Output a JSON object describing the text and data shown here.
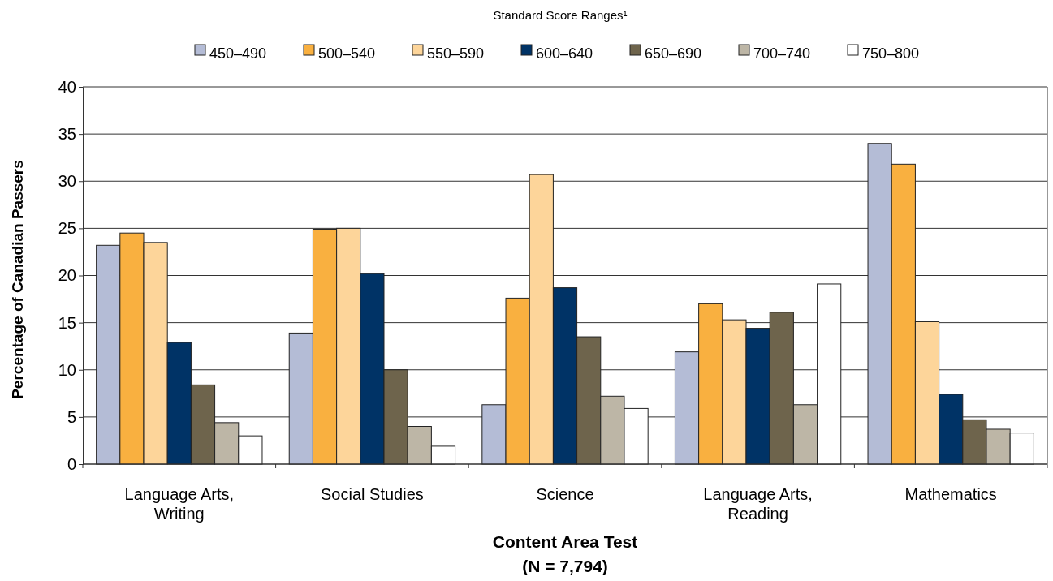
{
  "chart_data": {
    "type": "bar",
    "legend_title": "Standard Score Ranges¹",
    "xlabel": "Content Area Test\n(N = 7,794)",
    "ylabel": "Percentage of Canadian Passers",
    "categories": [
      "Language Arts, Writing",
      "Social Studies",
      "Science",
      "Language Arts, Reading",
      "Mathematics"
    ],
    "series": [
      {
        "name": "450–490",
        "color": "#b4bcd6",
        "values": [
          23.2,
          13.9,
          6.3,
          11.9,
          34.0
        ]
      },
      {
        "name": "500–540",
        "color": "#f9b040",
        "values": [
          24.5,
          24.9,
          17.6,
          17.0,
          31.8
        ]
      },
      {
        "name": "550–590",
        "color": "#fdd59a",
        "values": [
          23.5,
          25.0,
          30.7,
          15.3,
          15.1
        ]
      },
      {
        "name": "600–640",
        "color": "#003366",
        "values": [
          12.9,
          20.2,
          18.7,
          14.4,
          7.4
        ]
      },
      {
        "name": "650–690",
        "color": "#6e644c",
        "values": [
          8.4,
          10.0,
          13.5,
          16.1,
          4.7
        ]
      },
      {
        "name": "700–740",
        "color": "#bdb6a6",
        "values": [
          4.4,
          4.0,
          7.2,
          6.3,
          3.7
        ]
      },
      {
        "name": "750–800",
        "color": "#ffffff",
        "values": [
          3.0,
          1.9,
          5.9,
          19.1,
          3.3
        ]
      }
    ],
    "ylim": [
      0,
      40
    ],
    "yticks": [
      0,
      5,
      10,
      15,
      20,
      25,
      30,
      35,
      40
    ],
    "grid": "y",
    "legend": "top"
  }
}
